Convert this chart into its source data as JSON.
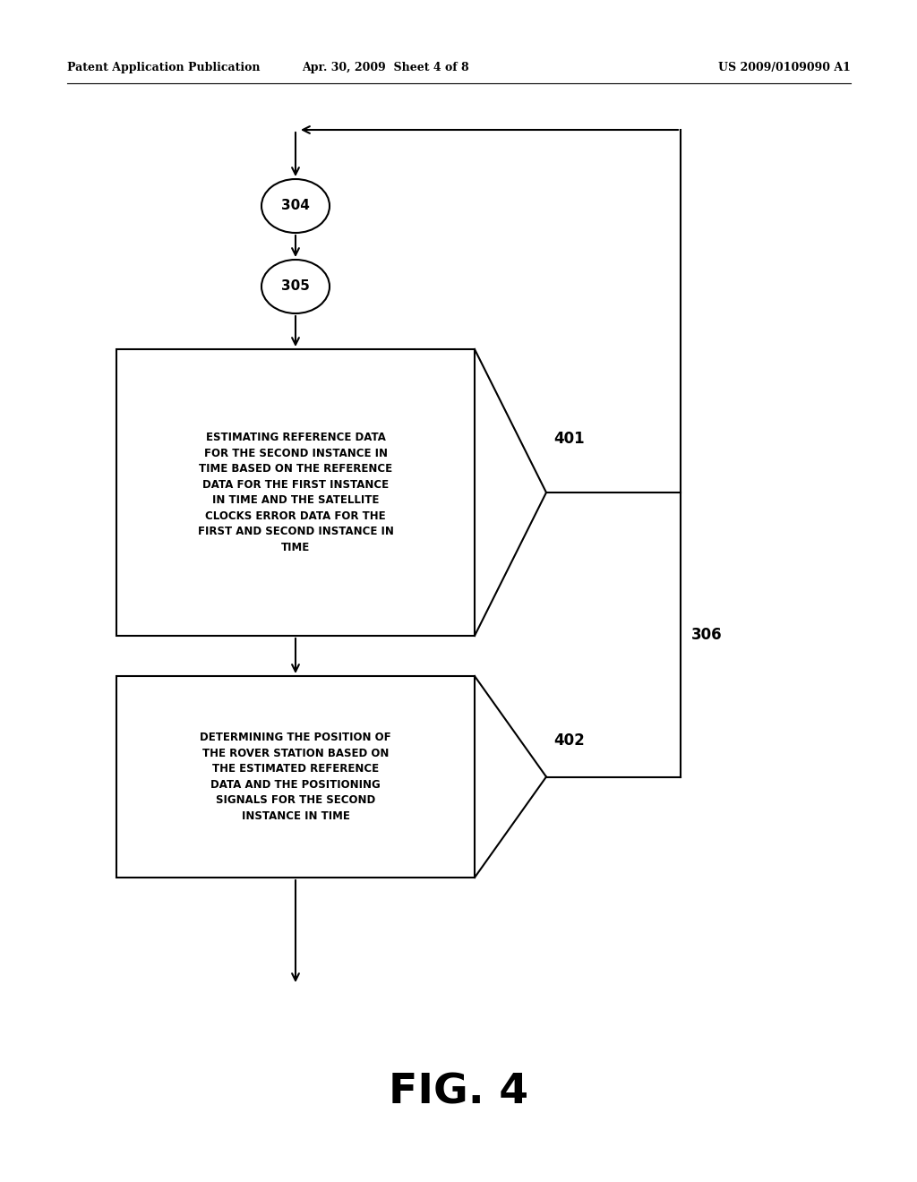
{
  "header_left": "Patent Application Publication",
  "header_center": "Apr. 30, 2009  Sheet 4 of 8",
  "header_right": "US 2009/0109090 A1",
  "fig_label": "FIG. 4",
  "background_color": "#ffffff",
  "line_color": "#000000",
  "text_color": "#000000",
  "circle_304_label": "304",
  "circle_305_label": "305",
  "box1_label": "ESTIMATING REFERENCE DATA\nFOR THE SECOND INSTANCE IN\nTIME BASED ON THE REFERENCE\nDATA FOR THE FIRST INSTANCE\nIN TIME AND THE SATELLITE\nCLOCKS ERROR DATA FOR THE\nFIRST AND SECOND INSTANCE IN\nTIME",
  "box2_label": "DETERMINING THE POSITION OF\nTHE ROVER STATION BASED ON\nTHE ESTIMATED REFERENCE\nDATA AND THE POSITIONING\nSIGNALS FOR THE SECOND\nINSTANCE IN TIME",
  "label_401": "401",
  "label_402": "402",
  "label_306": "306"
}
